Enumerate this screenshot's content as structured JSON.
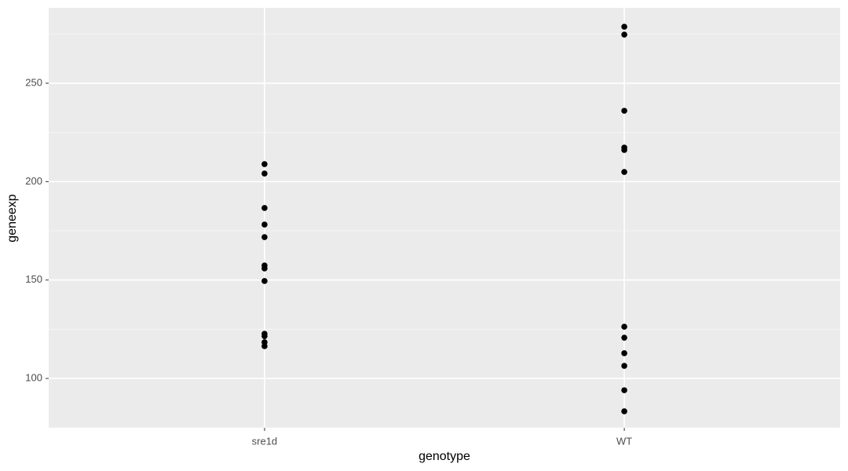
{
  "chart_data": {
    "type": "strip",
    "x_label": "genotype",
    "y_label": "geneexp",
    "categories": [
      "sre1d",
      "WT"
    ],
    "x": [
      "sre1d",
      "sre1d",
      "sre1d",
      "sre1d",
      "sre1d",
      "sre1d",
      "sre1d",
      "sre1d",
      "sre1d",
      "sre1d",
      "sre1d",
      "sre1d",
      "WT",
      "WT",
      "WT",
      "WT",
      "WT",
      "WT",
      "WT",
      "WT",
      "WT",
      "WT",
      "WT",
      "WT"
    ],
    "values": [
      208.9,
      204.1,
      186.6,
      178.2,
      171.8,
      157.4,
      155.9,
      149.5,
      122.7,
      121.5,
      118.4,
      116.4,
      278.7,
      274.7,
      236.0,
      217.3,
      216.1,
      204.9,
      126.3,
      120.7,
      112.8,
      106.4,
      94.0,
      83.3
    ],
    "color": "#000000",
    "ylim": [
      74.9,
      288.3
    ],
    "yticks": [
      100,
      150,
      200,
      250
    ],
    "y_minor_ticks": [
      75,
      125,
      175,
      225,
      275
    ],
    "grid": true
  }
}
